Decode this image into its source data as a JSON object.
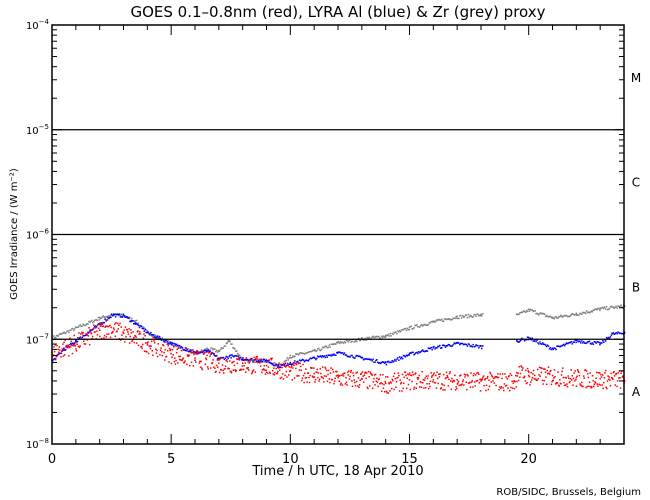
{
  "chart_data": {
    "type": "scatter",
    "title": "GOES 0.1–0.8nm (red), LYRA Al (blue) & Zr (grey) proxy",
    "xlabel": "Time / h UTC, 18 Apr 2010",
    "ylabel": "GOES Irradiance / (W m⁻²)",
    "xlim": [
      0,
      24
    ],
    "ylim": [
      1e-08,
      0.0001
    ],
    "yscale": "log",
    "xticks": [
      0,
      5,
      10,
      15,
      20
    ],
    "yticks": [
      {
        "value": 1e-08,
        "base": "10",
        "exp": "−8"
      },
      {
        "value": 1e-07,
        "base": "10",
        "exp": "−7"
      },
      {
        "value": 1e-06,
        "base": "10",
        "exp": "−6"
      },
      {
        "value": 1e-05,
        "base": "10",
        "exp": "−5"
      },
      {
        "value": 0.0001,
        "base": "10",
        "exp": "−4"
      }
    ],
    "class_lines": [
      1e-05,
      1e-06,
      1e-07
    ],
    "class_labels": [
      {
        "label": "M",
        "value": 3.2e-05
      },
      {
        "label": "C",
        "value": 3.2e-06
      },
      {
        "label": "B",
        "value": 3.2e-07
      },
      {
        "label": "A",
        "value": 3.2e-08
      }
    ],
    "series": [
      {
        "name": "Zr proxy (grey)",
        "color": "#808080",
        "gap": [
          18.05,
          19.45
        ],
        "x": [
          0,
          1,
          2,
          2.5,
          3,
          3.5,
          4,
          5,
          6,
          6.5,
          7,
          7.4,
          8,
          9,
          9.5,
          10,
          11,
          12,
          13,
          14,
          15,
          16,
          17,
          18,
          19.5,
          20,
          21,
          22,
          23,
          24
        ],
        "y": [
          1.05e-07,
          1.3e-07,
          1.62e-07,
          1.74e-07,
          1.7e-07,
          1.5e-07,
          1.17e-07,
          9.2e-08,
          7.5e-08,
          8.2e-08,
          7.8e-08,
          9.8e-08,
          6.3e-08,
          6.3e-08,
          5.6e-08,
          7e-08,
          7.8e-08,
          9.4e-08,
          1.02e-07,
          1.09e-07,
          1.3e-07,
          1.49e-07,
          1.66e-07,
          1.73e-07,
          1.73e-07,
          1.93e-07,
          1.62e-07,
          1.77e-07,
          1.98e-07,
          2.1e-07
        ]
      },
      {
        "name": "LYRA Al (blue)",
        "color": "#0000ff",
        "gap": [
          18.05,
          19.45
        ],
        "x": [
          0,
          0.5,
          1,
          2,
          2.5,
          3,
          3.5,
          4,
          5,
          6,
          6.5,
          7,
          7.5,
          8,
          9,
          9.5,
          10,
          11,
          12,
          13,
          14,
          15,
          16,
          17,
          18,
          19.5,
          20,
          21,
          22,
          23,
          23.5,
          24
        ],
        "y": [
          6.3e-08,
          8.2e-08,
          9.8e-08,
          1.42e-07,
          1.73e-07,
          1.7e-07,
          1.42e-07,
          1.17e-07,
          9.2e-08,
          7.5e-08,
          7.8e-08,
          6.6e-08,
          7e-08,
          6.6e-08,
          6.3e-08,
          5.6e-08,
          6e-08,
          6.7e-08,
          7.5e-08,
          6.7e-08,
          6e-08,
          7.3e-08,
          8.4e-08,
          9.2e-08,
          8.6e-08,
          9.8e-08,
          1.04e-07,
          8.2e-08,
          9.8e-08,
          9.2e-08,
          1.14e-07,
          1.17e-07
        ]
      },
      {
        "name": "GOES 0.1-0.8nm (red)",
        "color": "#ff0000",
        "gap": null,
        "x": [
          0,
          1,
          2,
          2.3,
          3,
          4,
          5,
          6,
          7,
          8,
          9,
          10,
          11,
          12,
          13,
          14,
          15,
          16,
          17,
          18,
          19.4,
          19.5,
          20,
          21,
          22,
          23,
          24
        ],
        "y": [
          7.5e-08,
          9.3e-08,
          1.22e-07,
          1.33e-07,
          1.14e-07,
          9.2e-08,
          7.3e-08,
          6.6e-08,
          5.9e-08,
          5.9e-08,
          5.6e-08,
          5e-08,
          4.7e-08,
          4.3e-08,
          4.2e-08,
          3.8e-08,
          4.1e-08,
          4.1e-08,
          4.1e-08,
          4e-08,
          4e-08,
          4.8e-08,
          4.5e-08,
          4.5e-08,
          4.3e-08,
          4.2e-08,
          4.2e-08
        ]
      }
    ]
  },
  "credit": "ROB/SIDC, Brussels, Belgium"
}
